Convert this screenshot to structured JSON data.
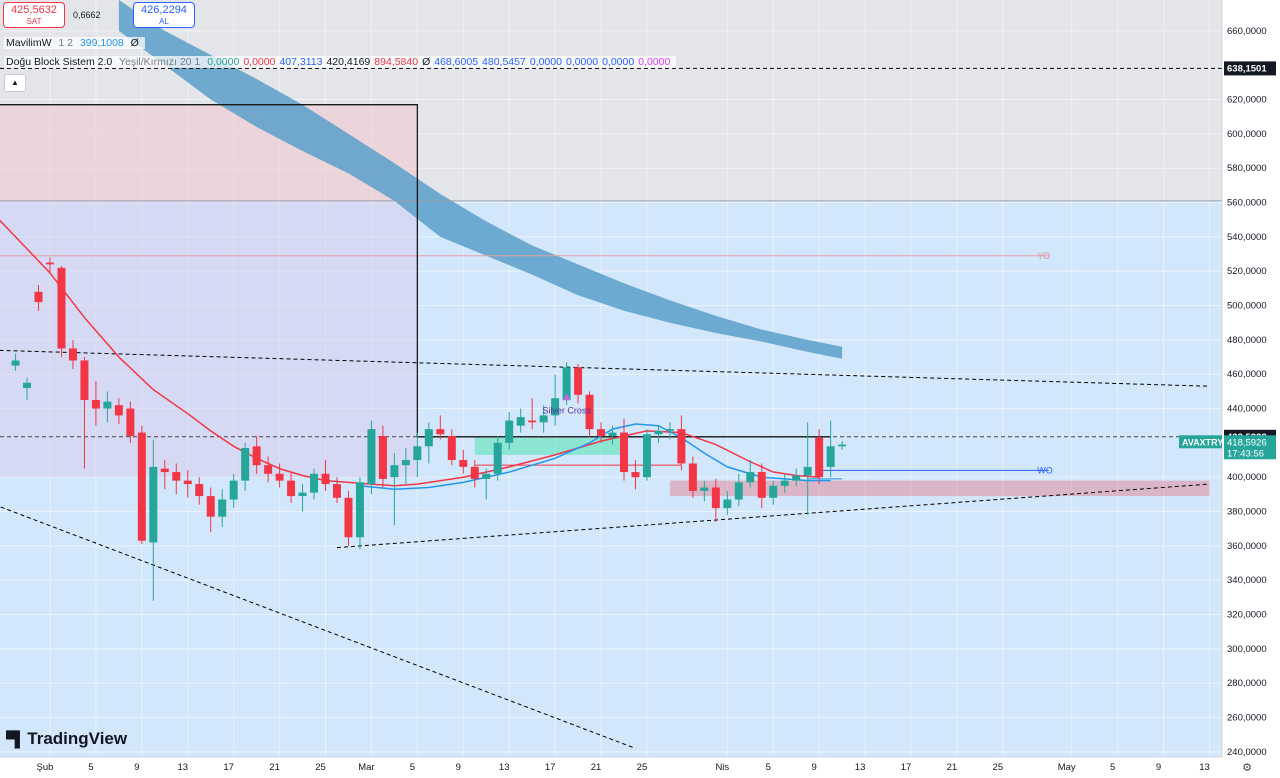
{
  "header": {
    "sell_price": "425,5632",
    "sell_label": "SAT",
    "spread": "0,6662",
    "buy_price": "426,2294",
    "buy_label": "AL"
  },
  "indicators": {
    "mavilim": {
      "name": "MavilimW",
      "params": "1 2",
      "value": "399,1008",
      "suffix": "Ø"
    },
    "dogu": {
      "name": "Doğu Block Sistem 2.0",
      "params": "Yeşil/Kırmızı 20 1",
      "values": [
        {
          "text": "0,0000",
          "color": "#26a69a"
        },
        {
          "text": "0,0000",
          "color": "#f23645"
        },
        {
          "text": "407,3113",
          "color": "#2962ff"
        },
        {
          "text": "420,4169",
          "color": "#131722"
        },
        {
          "text": "894,5840",
          "color": "#f23645"
        },
        {
          "text": "Ø",
          "color": "#131722"
        },
        {
          "text": "468,6005",
          "color": "#2962ff"
        },
        {
          "text": "480,5457",
          "color": "#2962ff"
        },
        {
          "text": "0,0000",
          "color": "#2962ff"
        },
        {
          "text": "0,0000",
          "color": "#2962ff"
        },
        {
          "text": "0,0000",
          "color": "#2962ff"
        },
        {
          "text": "0,0000",
          "color": "#e040fb"
        }
      ]
    }
  },
  "collapse_icon": "chevron-up-icon",
  "logo_text": "TradingView",
  "settings_icon": "gear-icon",
  "colors": {
    "up": "#26a69a",
    "down": "#f23645",
    "band": "#5b9fc9",
    "ma": "#f23645",
    "signal": "#2196f3",
    "accent": "#131722"
  },
  "chart_data": {
    "type": "candlestick",
    "symbol": "AVAXTRY",
    "ylim": [
      237,
      678
    ],
    "grid": true,
    "y_ticks": [
      {
        "value": 660,
        "label": "660,0000"
      },
      {
        "value": 620,
        "label": "620,0000"
      },
      {
        "value": 600,
        "label": "600,0000"
      },
      {
        "value": 580,
        "label": "580,0000"
      },
      {
        "value": 560,
        "label": "560,0000"
      },
      {
        "value": 540,
        "label": "540,0000"
      },
      {
        "value": 520,
        "label": "520,0000"
      },
      {
        "value": 500,
        "label": "500,0000"
      },
      {
        "value": 480,
        "label": "480,0000"
      },
      {
        "value": 460,
        "label": "460,0000"
      },
      {
        "value": 440,
        "label": "440,0000"
      },
      {
        "value": 400,
        "label": "400,0000"
      },
      {
        "value": 380,
        "label": "380,0000"
      },
      {
        "value": 360,
        "label": "360,0000"
      },
      {
        "value": 340,
        "label": "340,0000"
      },
      {
        "value": 320,
        "label": "320,0000"
      },
      {
        "value": 300,
        "label": "300,0000"
      },
      {
        "value": 280,
        "label": "280,0000"
      },
      {
        "value": 260,
        "label": "260,0000"
      },
      {
        "value": 240,
        "label": "240,0000"
      }
    ],
    "x_ticks": [
      {
        "i": 0,
        "label": "Şub"
      },
      {
        "i": 4,
        "label": "5"
      },
      {
        "i": 8,
        "label": "9"
      },
      {
        "i": 12,
        "label": "13"
      },
      {
        "i": 16,
        "label": "17"
      },
      {
        "i": 20,
        "label": "21"
      },
      {
        "i": 24,
        "label": "25"
      },
      {
        "i": 28,
        "label": "Mar"
      },
      {
        "i": 32,
        "label": "5"
      },
      {
        "i": 36,
        "label": "9"
      },
      {
        "i": 40,
        "label": "13"
      },
      {
        "i": 44,
        "label": "17"
      },
      {
        "i": 48,
        "label": "21"
      },
      {
        "i": 52,
        "label": "25"
      },
      {
        "i": 59,
        "label": "Nis"
      },
      {
        "i": 63,
        "label": "5"
      },
      {
        "i": 67,
        "label": "9"
      },
      {
        "i": 71,
        "label": "13"
      },
      {
        "i": 75,
        "label": "17"
      },
      {
        "i": 79,
        "label": "21"
      },
      {
        "i": 83,
        "label": "25"
      },
      {
        "i": 89,
        "label": "May"
      },
      {
        "i": 93,
        "label": "5"
      },
      {
        "i": 97,
        "label": "9"
      },
      {
        "i": 101,
        "label": "13"
      }
    ],
    "price_labels": [
      {
        "value": 638.15,
        "label": "638,1501",
        "style": "dark"
      },
      {
        "value": 423.53,
        "label": "423,5338",
        "style": "dark"
      },
      {
        "symbol": "AVAXTRY",
        "value": 418.59,
        "label": "418,5926",
        "countdown": "17:43:56",
        "style": "green"
      }
    ],
    "candles": [
      {
        "i": -3,
        "o": 465,
        "h": 472,
        "l": 462,
        "c": 468
      },
      {
        "i": -2,
        "o": 452,
        "h": 458,
        "l": 445,
        "c": 455
      },
      {
        "i": -1,
        "o": 508,
        "h": 512,
        "l": 497,
        "c": 502
      },
      {
        "i": 0,
        "o": 525,
        "h": 528,
        "l": 519,
        "c": 524
      },
      {
        "i": 1,
        "o": 522,
        "h": 523,
        "l": 470,
        "c": 475
      },
      {
        "i": 2,
        "o": 475,
        "h": 480,
        "l": 463,
        "c": 468
      },
      {
        "i": 3,
        "o": 468,
        "h": 470,
        "l": 405,
        "c": 445
      },
      {
        "i": 4,
        "o": 445,
        "h": 456,
        "l": 430,
        "c": 440
      },
      {
        "i": 5,
        "o": 440,
        "h": 450,
        "l": 432,
        "c": 444
      },
      {
        "i": 6,
        "o": 442,
        "h": 446,
        "l": 431,
        "c": 436
      },
      {
        "i": 7,
        "o": 440,
        "h": 444,
        "l": 420,
        "c": 424
      },
      {
        "i": 8,
        "o": 426,
        "h": 430,
        "l": 361,
        "c": 363
      },
      {
        "i": 9,
        "o": 362,
        "h": 422,
        "l": 328,
        "c": 406
      },
      {
        "i": 10,
        "o": 405,
        "h": 410,
        "l": 393,
        "c": 403
      },
      {
        "i": 11,
        "o": 403,
        "h": 408,
        "l": 390,
        "c": 398
      },
      {
        "i": 12,
        "o": 398,
        "h": 404,
        "l": 388,
        "c": 396
      },
      {
        "i": 13,
        "o": 396,
        "h": 400,
        "l": 384,
        "c": 389
      },
      {
        "i": 14,
        "o": 389,
        "h": 394,
        "l": 368,
        "c": 377
      },
      {
        "i": 15,
        "o": 377,
        "h": 393,
        "l": 371,
        "c": 387
      },
      {
        "i": 16,
        "o": 387,
        "h": 402,
        "l": 382,
        "c": 398
      },
      {
        "i": 17,
        "o": 398,
        "h": 420,
        "l": 392,
        "c": 417
      },
      {
        "i": 18,
        "o": 418,
        "h": 424,
        "l": 402,
        "c": 407
      },
      {
        "i": 19,
        "o": 407,
        "h": 412,
        "l": 397,
        "c": 402
      },
      {
        "i": 20,
        "o": 402,
        "h": 408,
        "l": 394,
        "c": 398
      },
      {
        "i": 21,
        "o": 398,
        "h": 403,
        "l": 385,
        "c": 389
      },
      {
        "i": 22,
        "o": 389,
        "h": 396,
        "l": 380,
        "c": 391
      },
      {
        "i": 23,
        "o": 391,
        "h": 405,
        "l": 387,
        "c": 402
      },
      {
        "i": 24,
        "o": 402,
        "h": 410,
        "l": 392,
        "c": 396
      },
      {
        "i": 25,
        "o": 396,
        "h": 400,
        "l": 385,
        "c": 388
      },
      {
        "i": 26,
        "o": 388,
        "h": 392,
        "l": 360,
        "c": 365
      },
      {
        "i": 27,
        "o": 365,
        "h": 400,
        "l": 358,
        "c": 397
      },
      {
        "i": 28,
        "o": 396,
        "h": 433,
        "l": 390,
        "c": 428
      },
      {
        "i": 29,
        "o": 424,
        "h": 430,
        "l": 394,
        "c": 399
      },
      {
        "i": 30,
        "o": 400,
        "h": 414,
        "l": 372,
        "c": 407
      },
      {
        "i": 31,
        "o": 407,
        "h": 417,
        "l": 396,
        "c": 410
      },
      {
        "i": 32,
        "o": 410,
        "h": 426,
        "l": 400,
        "c": 418
      },
      {
        "i": 33,
        "o": 418,
        "h": 432,
        "l": 408,
        "c": 428
      },
      {
        "i": 34,
        "o": 428,
        "h": 436,
        "l": 422,
        "c": 425
      },
      {
        "i": 35,
        "o": 424,
        "h": 428,
        "l": 407,
        "c": 410
      },
      {
        "i": 36,
        "o": 410,
        "h": 416,
        "l": 402,
        "c": 406
      },
      {
        "i": 37,
        "o": 406,
        "h": 410,
        "l": 394,
        "c": 399
      },
      {
        "i": 38,
        "o": 399,
        "h": 405,
        "l": 387,
        "c": 402
      },
      {
        "i": 39,
        "o": 402,
        "h": 424,
        "l": 398,
        "c": 420
      },
      {
        "i": 40,
        "o": 420,
        "h": 438,
        "l": 416,
        "c": 433
      },
      {
        "i": 41,
        "o": 430,
        "h": 440,
        "l": 426,
        "c": 435
      },
      {
        "i": 42,
        "o": 433,
        "h": 446,
        "l": 428,
        "c": 432
      },
      {
        "i": 43,
        "o": 432,
        "h": 442,
        "l": 426,
        "c": 436
      },
      {
        "i": 44,
        "o": 436,
        "h": 460,
        "l": 430,
        "c": 446
      },
      {
        "i": 45,
        "o": 445,
        "h": 467,
        "l": 442,
        "c": 464
      },
      {
        "i": 46,
        "o": 464,
        "h": 466,
        "l": 443,
        "c": 448
      },
      {
        "i": 47,
        "o": 448,
        "h": 450,
        "l": 423,
        "c": 428
      },
      {
        "i": 48,
        "o": 428,
        "h": 432,
        "l": 420,
        "c": 424
      },
      {
        "i": 49,
        "o": 424,
        "h": 430,
        "l": 419,
        "c": 426
      },
      {
        "i": 50,
        "o": 426,
        "h": 434,
        "l": 398,
        "c": 403
      },
      {
        "i": 51,
        "o": 403,
        "h": 410,
        "l": 393,
        "c": 400
      },
      {
        "i": 52,
        "o": 400,
        "h": 428,
        "l": 398,
        "c": 425
      },
      {
        "i": 53,
        "o": 425,
        "h": 430,
        "l": 420,
        "c": 427
      },
      {
        "i": 54,
        "o": 427,
        "h": 432,
        "l": 422,
        "c": 428
      },
      {
        "i": 55,
        "o": 428,
        "h": 436,
        "l": 404,
        "c": 408
      },
      {
        "i": 56,
        "o": 408,
        "h": 412,
        "l": 388,
        "c": 392
      },
      {
        "i": 57,
        "o": 392,
        "h": 398,
        "l": 386,
        "c": 394
      },
      {
        "i": 58,
        "o": 394,
        "h": 399,
        "l": 374,
        "c": 382
      },
      {
        "i": 59,
        "o": 382,
        "h": 392,
        "l": 378,
        "c": 387
      },
      {
        "i": 60,
        "o": 387,
        "h": 402,
        "l": 383,
        "c": 397
      },
      {
        "i": 61,
        "o": 397,
        "h": 410,
        "l": 394,
        "c": 403
      },
      {
        "i": 62,
        "o": 403,
        "h": 408,
        "l": 382,
        "c": 388
      },
      {
        "i": 63,
        "o": 388,
        "h": 398,
        "l": 384,
        "c": 395
      },
      {
        "i": 64,
        "o": 395,
        "h": 402,
        "l": 391,
        "c": 398
      },
      {
        "i": 65,
        "o": 398,
        "h": 405,
        "l": 395,
        "c": 401
      },
      {
        "i": 66,
        "o": 401,
        "h": 432,
        "l": 378,
        "c": 406
      },
      {
        "i": 67,
        "o": 423,
        "h": 428,
        "l": 396,
        "c": 400
      },
      {
        "i": 68,
        "o": 406,
        "h": 433,
        "l": 400,
        "c": 418
      },
      {
        "i": 69,
        "o": 418,
        "h": 421,
        "l": 416,
        "c": 419
      }
    ],
    "shapes": [
      {
        "type": "rect",
        "from": -6,
        "to": 32,
        "top": 617,
        "bottom": 561,
        "fill": "#f4c7cf",
        "opacity": 0.55
      },
      {
        "type": "rect",
        "from": -6,
        "to": 32,
        "top": 561,
        "bottom": 400,
        "fill": "#d9c8e8",
        "opacity": 0.45
      },
      {
        "type": "rect",
        "from": 37,
        "to": 50,
        "top": 423,
        "bottom": 413,
        "fill": "#37e0a2",
        "opacity": 0.45
      },
      {
        "type": "rect",
        "from": 54,
        "to": 101,
        "top": 398,
        "bottom": 389,
        "fill": "#f23645",
        "opacity": 0.28
      }
    ],
    "sma_points": [
      [
        -6,
        561
      ],
      [
        -3,
        540
      ],
      [
        0,
        519
      ],
      [
        3,
        493
      ],
      [
        6,
        470
      ],
      [
        9,
        451
      ],
      [
        12,
        437
      ],
      [
        14,
        427
      ],
      [
        16,
        418
      ],
      [
        18,
        411
      ],
      [
        20,
        405
      ],
      [
        22,
        401
      ],
      [
        24,
        398
      ],
      [
        26,
        397
      ],
      [
        28,
        396
      ],
      [
        30,
        395
      ],
      [
        32,
        396
      ],
      [
        36,
        400
      ],
      [
        40,
        406
      ],
      [
        44,
        413
      ],
      [
        48,
        421
      ],
      [
        52,
        427
      ],
      [
        55,
        426
      ],
      [
        58,
        419
      ],
      [
        61,
        409
      ],
      [
        63,
        403
      ],
      [
        65,
        401
      ],
      [
        67,
        400
      ]
    ],
    "signal_points": [
      [
        27,
        395
      ],
      [
        30,
        393
      ],
      [
        33,
        394
      ],
      [
        36,
        397
      ],
      [
        40,
        403
      ],
      [
        44,
        411
      ],
      [
        47,
        420
      ],
      [
        49,
        428
      ],
      [
        51,
        431
      ],
      [
        53,
        430
      ],
      [
        55,
        423
      ],
      [
        57,
        414
      ],
      [
        59,
        406
      ],
      [
        62,
        400
      ],
      [
        64,
        399
      ],
      [
        66,
        398
      ],
      [
        68,
        398
      ]
    ],
    "band_upper": [
      [
        6,
        678
      ],
      [
        10,
        660
      ],
      [
        14,
        646
      ],
      [
        18,
        632
      ],
      [
        22,
        617
      ],
      [
        26,
        600
      ],
      [
        30,
        583
      ],
      [
        34,
        565
      ],
      [
        38,
        549
      ],
      [
        42,
        535
      ],
      [
        46,
        524
      ],
      [
        50,
        513
      ],
      [
        54,
        503
      ],
      [
        58,
        494
      ],
      [
        62,
        486
      ],
      [
        66,
        480
      ],
      [
        69,
        476
      ]
    ],
    "band_lower": [
      [
        6,
        660
      ],
      [
        10,
        640
      ],
      [
        14,
        620
      ],
      [
        18,
        604
      ],
      [
        22,
        590
      ],
      [
        26,
        577
      ],
      [
        30,
        561
      ],
      [
        34,
        540
      ],
      [
        38,
        529
      ],
      [
        42,
        518
      ],
      [
        46,
        506
      ],
      [
        50,
        497
      ],
      [
        54,
        490
      ],
      [
        58,
        484
      ],
      [
        62,
        479
      ],
      [
        66,
        473
      ],
      [
        69,
        469
      ]
    ],
    "hlines": [
      {
        "value": 638.15,
        "style": "dashed",
        "color": "#000000"
      },
      {
        "value": 561,
        "style": "solid",
        "color": "#9aa0ab"
      },
      {
        "value": 529,
        "style": "solid",
        "color": "#e8a0a8",
        "from": -6,
        "to": 87
      },
      {
        "value": 423.53,
        "style": "dashed",
        "color": "#444444"
      },
      {
        "value": 404,
        "style": "solid",
        "color": "#2962ff",
        "from": 67,
        "to": 87
      },
      {
        "value": 399,
        "style": "solid",
        "color": "#2196f3",
        "from": 66,
        "to": 69
      },
      {
        "value": 407,
        "style": "solid",
        "color": "#f23645",
        "from": 37,
        "to": 55
      }
    ],
    "trendlines": [
      {
        "p1": [
          -5,
          474
        ],
        "p2": [
          101,
          453
        ],
        "color": "#000000",
        "dash": "4,3"
      },
      {
        "p1": [
          -6,
          387
        ],
        "p2": [
          51,
          242
        ],
        "color": "#000000",
        "dash": "4,3"
      },
      {
        "p1": [
          25,
          359
        ],
        "p2": [
          101,
          396
        ],
        "color": "#000000",
        "dash": "4,3"
      }
    ],
    "box_line": {
      "x1": -6,
      "x2": 32,
      "top": 617,
      "base": 423.53,
      "right": 68
    },
    "annotations": [
      {
        "text": "YO",
        "i": 86,
        "value": 529,
        "color": "#e58b97"
      },
      {
        "text": "WO",
        "i": 86,
        "value": 404,
        "color": "#2962ff"
      },
      {
        "text": "Silver Cross",
        "i": 45,
        "value": 439,
        "color": "#5a2ea6",
        "marker": "triangle"
      }
    ]
  }
}
